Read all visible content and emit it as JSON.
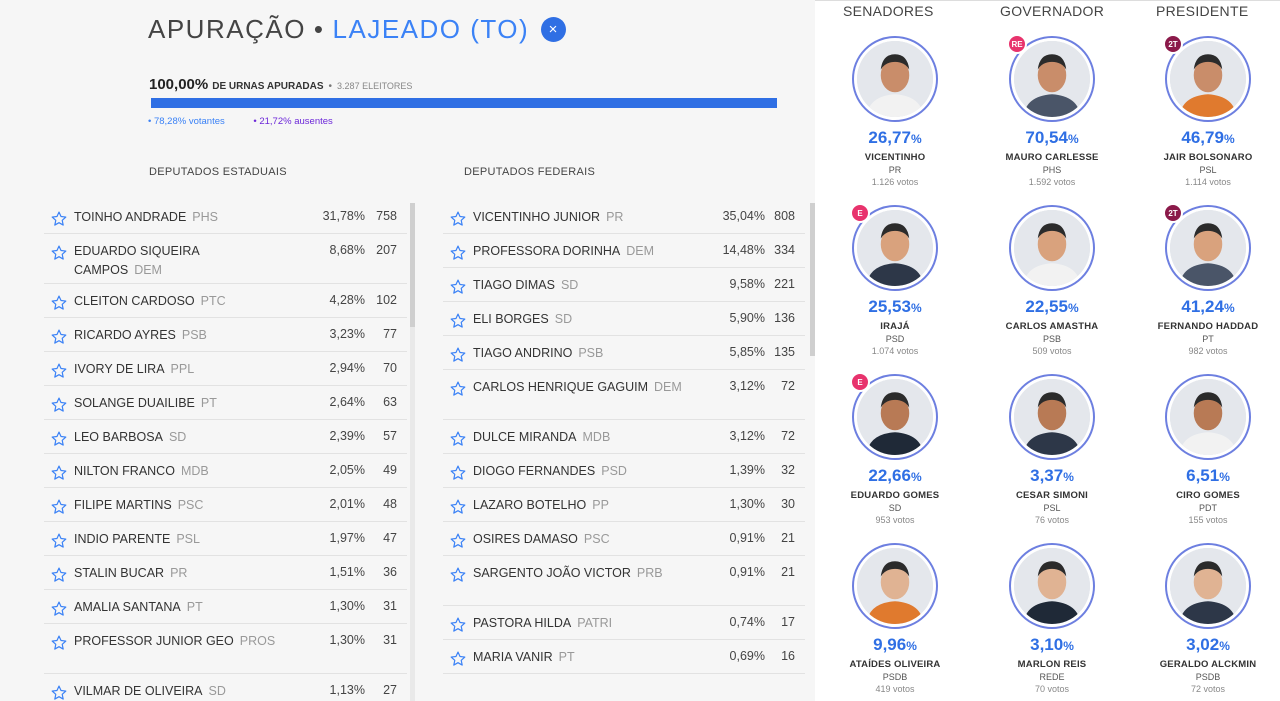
{
  "header": {
    "title_prefix": "APURAÇÃO",
    "title_sep": "•",
    "title_city": "LAJEADO (TO)",
    "close_symbol": "×"
  },
  "summary": {
    "pct_urnas": "100,00%",
    "urnas_label": "DE URNAS APURADAS",
    "sep": "•",
    "eleitores": "3.287 ELEITORES",
    "progress_fraction": 1.0,
    "votantes": "• 78,28%  votantes",
    "ausentes": "• 21,72%  ausentes"
  },
  "colors": {
    "accent": "#2f6fe4",
    "ausentes": "#6d28d9",
    "avatar_ring": "#6d7fe0",
    "badge_pink": "#e8336d",
    "badge_wine": "#8b1a4a"
  },
  "estaduais": {
    "header": "DEPUTADOS ESTADUAIS",
    "rows": [
      {
        "name": "TOINHO ANDRADE",
        "party": "PHS",
        "pct": "31,78%",
        "votes": "758"
      },
      {
        "name": "EDUARDO SIQUEIRA CAMPOS",
        "party": "DEM",
        "pct": "8,68%",
        "votes": "207"
      },
      {
        "name": "CLEITON CARDOSO",
        "party": "PTC",
        "pct": "4,28%",
        "votes": "102"
      },
      {
        "name": "RICARDO AYRES",
        "party": "PSB",
        "pct": "3,23%",
        "votes": "77"
      },
      {
        "name": "IVORY DE LIRA",
        "party": "PPL",
        "pct": "2,94%",
        "votes": "70"
      },
      {
        "name": "SOLANGE DUAILIBE",
        "party": "PT",
        "pct": "2,64%",
        "votes": "63"
      },
      {
        "name": "LEO BARBOSA",
        "party": "SD",
        "pct": "2,39%",
        "votes": "57"
      },
      {
        "name": "NILTON FRANCO",
        "party": "MDB",
        "pct": "2,05%",
        "votes": "49"
      },
      {
        "name": "FILIPE MARTINS",
        "party": "PSC",
        "pct": "2,01%",
        "votes": "48"
      },
      {
        "name": "INDIO PARENTE",
        "party": "PSL",
        "pct": "1,97%",
        "votes": "47"
      },
      {
        "name": "STALIN BUCAR",
        "party": "PR",
        "pct": "1,51%",
        "votes": "36"
      },
      {
        "name": "AMALIA SANTANA",
        "party": "PT",
        "pct": "1,30%",
        "votes": "31"
      },
      {
        "name": "PROFESSOR JUNIOR GEO",
        "party": "PROS",
        "pct": "1,30%",
        "votes": "31"
      },
      {
        "name": "VILMAR DE OLIVEIRA",
        "party": "SD",
        "pct": "1,13%",
        "votes": "27"
      }
    ]
  },
  "federais": {
    "header": "DEPUTADOS FEDERAIS",
    "rows": [
      {
        "name": "VICENTINHO JUNIOR",
        "party": "PR",
        "pct": "35,04%",
        "votes": "808"
      },
      {
        "name": "PROFESSORA DORINHA",
        "party": "DEM",
        "pct": "14,48%",
        "votes": "334"
      },
      {
        "name": "TIAGO DIMAS",
        "party": "SD",
        "pct": "9,58%",
        "votes": "221"
      },
      {
        "name": "ELI BORGES",
        "party": "SD",
        "pct": "5,90%",
        "votes": "136"
      },
      {
        "name": "TIAGO ANDRINO",
        "party": "PSB",
        "pct": "5,85%",
        "votes": "135"
      },
      {
        "name": "CARLOS HENRIQUE GAGUIM",
        "party": "DEM",
        "pct": "3,12%",
        "votes": "72"
      },
      {
        "name": "DULCE MIRANDA",
        "party": "MDB",
        "pct": "3,12%",
        "votes": "72"
      },
      {
        "name": "DIOGO FERNANDES",
        "party": "PSD",
        "pct": "1,39%",
        "votes": "32"
      },
      {
        "name": "LAZARO BOTELHO",
        "party": "PP",
        "pct": "1,30%",
        "votes": "30"
      },
      {
        "name": "OSIRES DAMASO",
        "party": "PSC",
        "pct": "0,91%",
        "votes": "21"
      },
      {
        "name": "SARGENTO JOÃO VICTOR",
        "party": "PRB",
        "pct": "0,91%",
        "votes": "21"
      },
      {
        "name": "PASTORA HILDA",
        "party": "PATRI",
        "pct": "0,74%",
        "votes": "17"
      },
      {
        "name": "MARIA VANIR",
        "party": "PT",
        "pct": "0,69%",
        "votes": "16"
      }
    ]
  },
  "races": {
    "senadores": {
      "header": "SENADORES",
      "candidates": [
        {
          "name": "VICENTINHO",
          "party": "PR",
          "pct": "26,77",
          "votes": "1.126 votos",
          "badge": ""
        },
        {
          "name": "IRAJÁ",
          "party": "PSD",
          "pct": "25,53",
          "votes": "1.074 votos",
          "badge": "E"
        },
        {
          "name": "EDUARDO GOMES",
          "party": "SD",
          "pct": "22,66",
          "votes": "953 votos",
          "badge": "E"
        },
        {
          "name": "ATAÍDES OLIVEIRA",
          "party": "PSDB",
          "pct": "9,96",
          "votes": "419 votos",
          "badge": ""
        }
      ]
    },
    "governador": {
      "header": "GOVERNADOR",
      "candidates": [
        {
          "name": "MAURO CARLESSE",
          "party": "PHS",
          "pct": "70,54",
          "votes": "1.592 votos",
          "badge": "RE"
        },
        {
          "name": "CARLOS AMASTHA",
          "party": "PSB",
          "pct": "22,55",
          "votes": "509 votos",
          "badge": ""
        },
        {
          "name": "CESAR SIMONI",
          "party": "PSL",
          "pct": "3,37",
          "votes": "76 votos",
          "badge": ""
        },
        {
          "name": "MARLON REIS",
          "party": "REDE",
          "pct": "3,10",
          "votes": "70 votos",
          "badge": ""
        }
      ]
    },
    "presidente": {
      "header": "PRESIDENTE",
      "candidates": [
        {
          "name": "JAIR BOLSONARO",
          "party": "PSL",
          "pct": "46,79",
          "votes": "1.114 votos",
          "badge": "2T"
        },
        {
          "name": "FERNANDO HADDAD",
          "party": "PT",
          "pct": "41,24",
          "votes": "982 votos",
          "badge": "2T"
        },
        {
          "name": "CIRO GOMES",
          "party": "PDT",
          "pct": "6,51",
          "votes": "155 votos",
          "badge": ""
        },
        {
          "name": "GERALDO ALCKMIN",
          "party": "PSDB",
          "pct": "3,02",
          "votes": "72 votos",
          "badge": ""
        }
      ]
    },
    "pct_suffix": "%"
  }
}
